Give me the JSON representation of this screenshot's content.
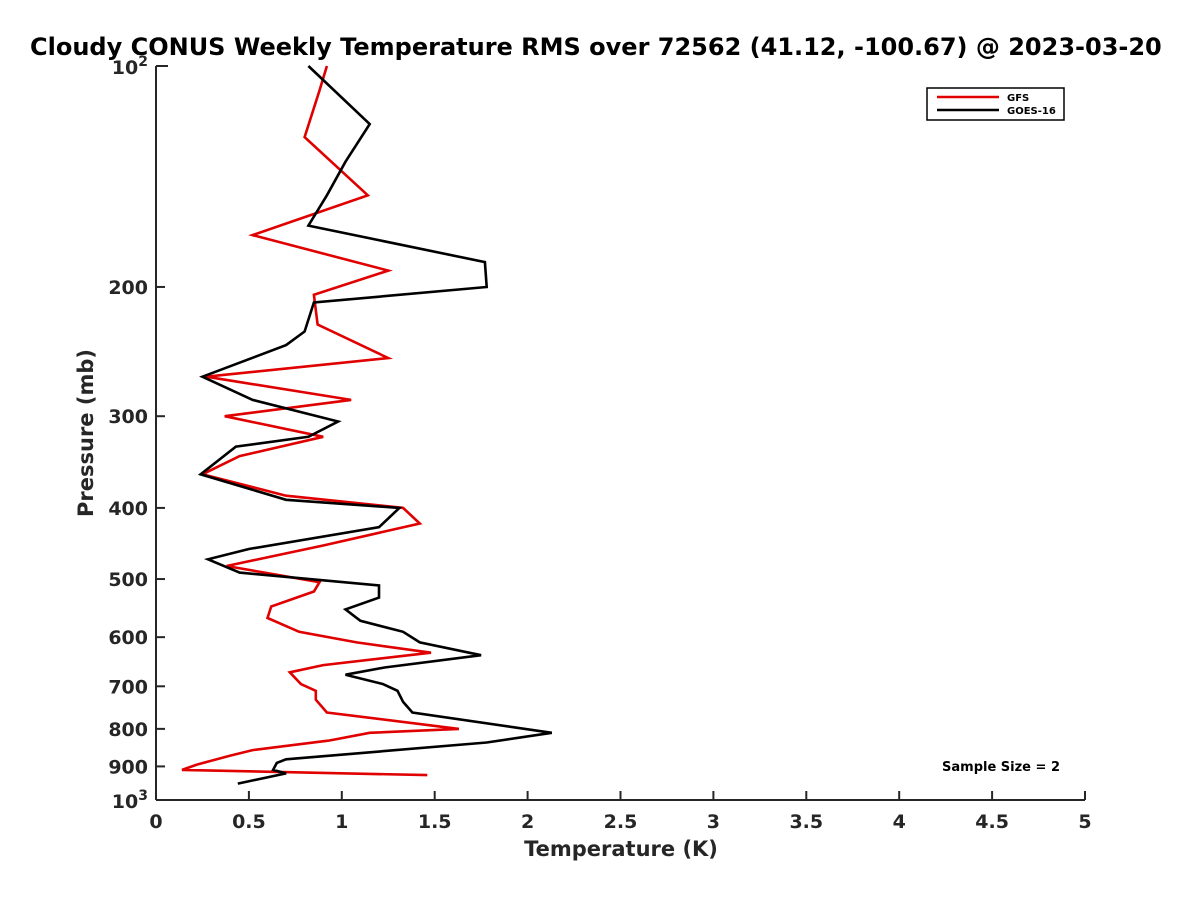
{
  "chart_data": {
    "type": "line",
    "title": "Cloudy CONUS Weekly Temperature RMS over 72562 (41.12, -100.67) @ 2023-03-20",
    "xlabel": "Temperature (K)",
    "ylabel": "Pressure (mb)",
    "xlim": [
      0,
      5
    ],
    "ylim": [
      100,
      1000
    ],
    "y_scale": "log",
    "y_reversed": true,
    "grid": false,
    "legend_position": "top-right",
    "x_ticks": [
      0,
      0.5,
      1,
      1.5,
      2,
      2.5,
      3,
      3.5,
      4,
      4.5,
      5
    ],
    "x_tick_labels": [
      "0",
      "0.5",
      "1",
      "1.5",
      "2",
      "2.5",
      "3",
      "3.5",
      "4",
      "4.5",
      "5"
    ],
    "y_ticks": [
      200,
      300,
      400,
      500,
      600,
      700,
      800,
      900
    ],
    "y_tick_labels": [
      "200",
      "300",
      "400",
      "500",
      "600",
      "700",
      "800",
      "900"
    ],
    "y_decade_labels": [
      {
        "value": 100,
        "base": "10",
        "exp": "2"
      },
      {
        "value": 1000,
        "base": "10",
        "exp": "3"
      }
    ],
    "annotation": "Sample Size = 2",
    "series": [
      {
        "name": "GFS",
        "color": "#e00000",
        "points": [
          [
            0.92,
            100
          ],
          [
            0.88,
            108
          ],
          [
            0.8,
            125
          ],
          [
            1.14,
            150
          ],
          [
            0.52,
            170
          ],
          [
            1.25,
            190
          ],
          [
            0.85,
            205
          ],
          [
            0.87,
            225
          ],
          [
            1.25,
            250
          ],
          [
            0.27,
            265
          ],
          [
            1.05,
            285
          ],
          [
            0.37,
            300
          ],
          [
            0.9,
            320
          ],
          [
            0.45,
            340
          ],
          [
            0.25,
            360
          ],
          [
            0.7,
            385
          ],
          [
            1.33,
            400
          ],
          [
            1.42,
            420
          ],
          [
            0.9,
            450
          ],
          [
            0.38,
            480
          ],
          [
            0.88,
            505
          ],
          [
            0.85,
            520
          ],
          [
            0.62,
            545
          ],
          [
            0.6,
            565
          ],
          [
            0.77,
            590
          ],
          [
            1.08,
            610
          ],
          [
            1.48,
            630
          ],
          [
            0.9,
            655
          ],
          [
            0.72,
            670
          ],
          [
            0.78,
            695
          ],
          [
            0.86,
            710
          ],
          [
            0.86,
            730
          ],
          [
            0.92,
            760
          ],
          [
            1.63,
            800
          ],
          [
            1.15,
            810
          ],
          [
            0.93,
            830
          ],
          [
            0.52,
            855
          ],
          [
            0.4,
            870
          ],
          [
            0.22,
            895
          ],
          [
            0.14,
            910
          ],
          [
            1.46,
            925
          ]
        ]
      },
      {
        "name": "GOES-16",
        "color": "#000000",
        "points": [
          [
            0.82,
            100
          ],
          [
            1.15,
            120
          ],
          [
            1.02,
            135
          ],
          [
            0.92,
            150
          ],
          [
            0.82,
            165
          ],
          [
            1.77,
            185
          ],
          [
            1.78,
            200
          ],
          [
            0.85,
            210
          ],
          [
            0.8,
            230
          ],
          [
            0.7,
            240
          ],
          [
            0.25,
            265
          ],
          [
            0.52,
            285
          ],
          [
            0.98,
            305
          ],
          [
            0.82,
            320
          ],
          [
            0.43,
            330
          ],
          [
            0.24,
            360
          ],
          [
            0.7,
            390
          ],
          [
            1.31,
            400
          ],
          [
            1.2,
            425
          ],
          [
            0.5,
            455
          ],
          [
            0.28,
            470
          ],
          [
            0.45,
            490
          ],
          [
            1.2,
            510
          ],
          [
            1.2,
            530
          ],
          [
            1.02,
            550
          ],
          [
            1.1,
            570
          ],
          [
            1.33,
            590
          ],
          [
            1.42,
            610
          ],
          [
            1.75,
            635
          ],
          [
            1.23,
            660
          ],
          [
            1.02,
            675
          ],
          [
            1.22,
            695
          ],
          [
            1.3,
            710
          ],
          [
            1.33,
            735
          ],
          [
            1.38,
            760
          ],
          [
            2.13,
            810
          ],
          [
            1.78,
            835
          ],
          [
            0.7,
            880
          ],
          [
            0.65,
            890
          ],
          [
            0.63,
            910
          ],
          [
            0.7,
            920
          ],
          [
            0.44,
            950
          ]
        ]
      }
    ]
  }
}
